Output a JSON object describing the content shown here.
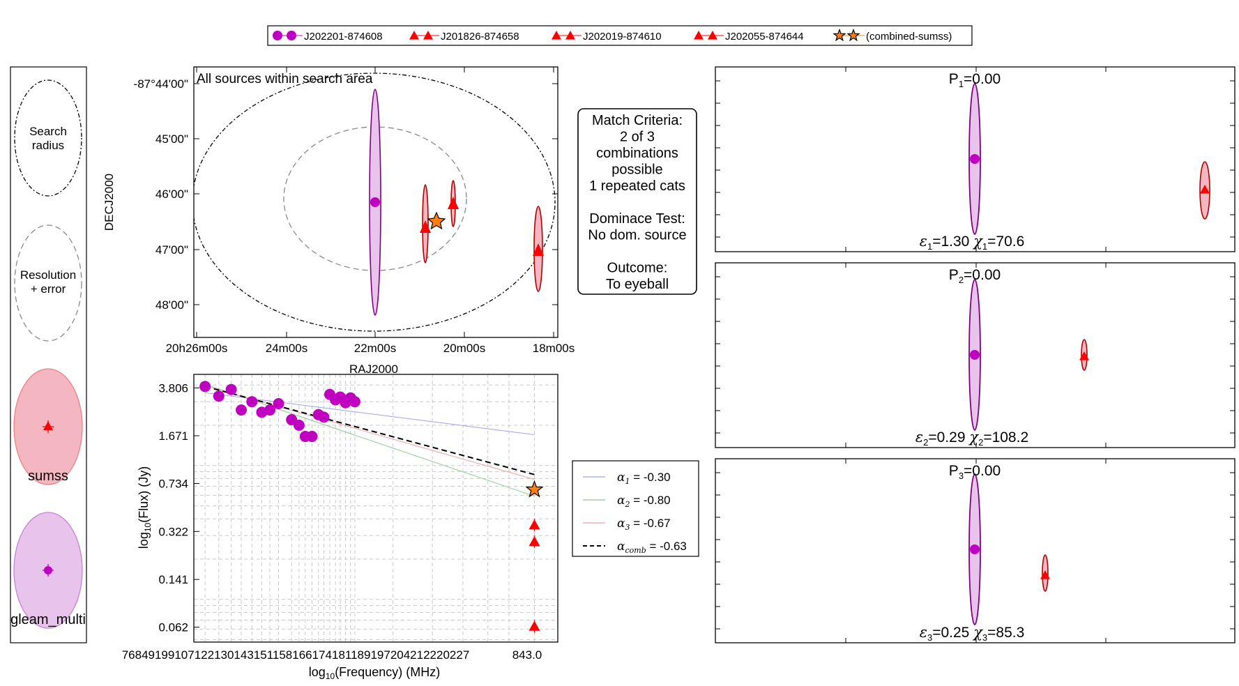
{
  "legend_top": {
    "items": [
      {
        "label": "J202201-874608",
        "color": "#c000c0",
        "marker": "circle"
      },
      {
        "label": "J201826-874658",
        "color": "#ff0000",
        "marker": "triangle"
      },
      {
        "label": "J202019-874610",
        "color": "#ff0000",
        "marker": "triangle"
      },
      {
        "label": "J202055-874644",
        "color": "#ff0000",
        "marker": "triangle"
      },
      {
        "label": "(combined-sumss)",
        "color": "#ff7f0e",
        "marker": "star"
      }
    ]
  },
  "key_panel": {
    "search_label_1": "Search",
    "search_label_2": "radius",
    "resolution_label_1": "Resolution",
    "resolution_label_2": "+ error",
    "catalogues": [
      {
        "name": "sumss",
        "fill": "#f4b6c0",
        "edge": "#f08080",
        "marker_color": "#ff0000",
        "marker": "triangle"
      },
      {
        "name": "gleam_multi",
        "fill": "#e8c4ec",
        "edge": "#c880d8",
        "marker_color": "#c000c0",
        "marker": "circle"
      }
    ]
  },
  "sky_plot": {
    "title": "All sources within search area",
    "xlabel": "RAJ2000",
    "ylabel": "DECJ2000",
    "xticks": [
      "20h26m00s",
      "24m00s",
      "22m00s",
      "20m00s",
      "18m00s"
    ],
    "yticks": [
      "-87°44'00\"",
      "45'00\"",
      "46'00\"",
      "47'00\"",
      "48'00\""
    ]
  },
  "criteria_box": {
    "lines": [
      "Match Criteria:",
      "2 of 3",
      "combinations",
      "possible",
      "1 repeated cats",
      "",
      "Dominace Test:",
      "No dom. source",
      "",
      "Outcome:",
      "To eyeball"
    ]
  },
  "combo_panels": [
    {
      "p_label": "P",
      "p_sub": "1",
      "p_value": "=0.00",
      "eps_sub": "1",
      "eps_value": "=1.30",
      "chi_sub": "1",
      "chi_value": "=70.6"
    },
    {
      "p_label": "P",
      "p_sub": "2",
      "p_value": "=0.00",
      "eps_sub": "2",
      "eps_value": "=0.29",
      "chi_sub": "2",
      "chi_value": "=108.2"
    },
    {
      "p_label": "P",
      "p_sub": "3",
      "p_value": "=0.00",
      "eps_sub": "3",
      "eps_value": "=0.25",
      "chi_sub": "3",
      "chi_value": "=85.3"
    }
  ],
  "sed_legend": [
    {
      "label": "= -0.30",
      "sub": "1",
      "color": "#a0a0f0",
      "dash": false
    },
    {
      "label": "= -0.80",
      "sub": "2",
      "color": "#90c890",
      "dash": false
    },
    {
      "label": "= -0.67",
      "sub": "3",
      "color": "#f0a0a0",
      "dash": false
    },
    {
      "label": "= -0.63",
      "sub": "comb",
      "color": "#000000",
      "dash": true
    }
  ],
  "chart_data": {
    "type": "scatter",
    "xlabel": "log10(Frequency) (MHz)",
    "ylabel": "log10(Flux) (Jy)",
    "ytick_labels": [
      "3.806",
      "1.671",
      "0.734",
      "0.322",
      "0.141",
      "0.062"
    ],
    "xtick_labels_crowded": "76849199107122130143151158166174181189197204212220227",
    "xtick_label_right": "843.0",
    "log_scale": true,
    "grid": true,
    "series": [
      {
        "name": "J202201-874608",
        "marker": "circle",
        "color": "#c000c0",
        "x": [
          76,
          84,
          92,
          99,
          107,
          115,
          122,
          130,
          143,
          151,
          158,
          166,
          174,
          181,
          189,
          197,
          204,
          212,
          220,
          227
        ],
        "y": [
          3.9,
          3.3,
          3.7,
          2.6,
          3.0,
          2.5,
          2.6,
          2.9,
          2.2,
          2.0,
          1.65,
          1.65,
          2.4,
          2.3,
          3.4,
          3.1,
          3.25,
          2.95,
          3.2,
          3.0
        ]
      },
      {
        "name": "J201826-874658",
        "marker": "triangle",
        "color": "#ff0000",
        "x": [
          843
        ],
        "y": [
          0.27
        ]
      },
      {
        "name": "J202019-874610",
        "marker": "triangle",
        "color": "#ff0000",
        "x": [
          843
        ],
        "y": [
          0.36
        ]
      },
      {
        "name": "J202055-874644",
        "marker": "triangle",
        "color": "#ff0000",
        "x": [
          843
        ],
        "y": [
          0.063
        ]
      },
      {
        "name": "(combined-sumss)",
        "marker": "star",
        "color": "#ff7f0e",
        "x": [
          843
        ],
        "y": [
          0.66
        ]
      }
    ],
    "fits": [
      {
        "alpha": -0.3,
        "color": "#a0a0f0"
      },
      {
        "alpha": -0.8,
        "color": "#90c890"
      },
      {
        "alpha": -0.67,
        "color": "#f0a0a0"
      },
      {
        "alpha": -0.63,
        "color": "#000000",
        "dashed": true
      }
    ]
  }
}
